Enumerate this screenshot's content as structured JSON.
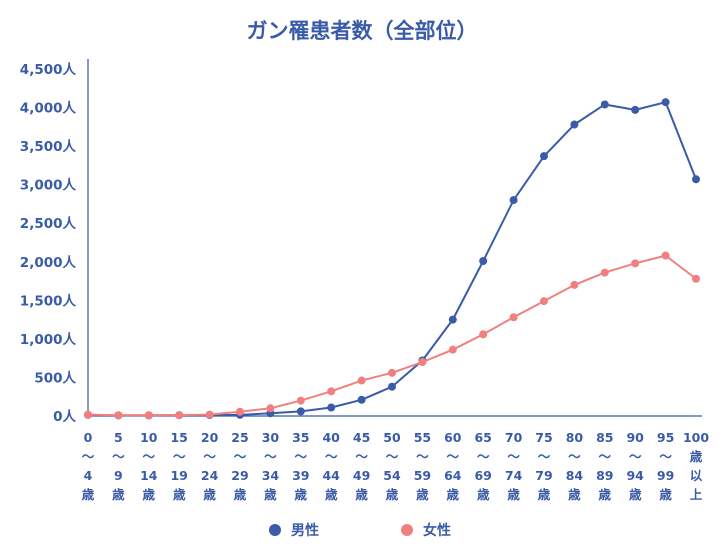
{
  "chart_data": {
    "type": "line",
    "title": "ガン罹患者数（全部位）",
    "xlabel": "",
    "ylabel": "",
    "ylim": [
      0,
      4500
    ],
    "y_ticks": [
      0,
      500,
      1000,
      1500,
      2000,
      2500,
      3000,
      3500,
      4000,
      4500
    ],
    "y_tick_labels": [
      "0人",
      "500人",
      "1,000人",
      "1,500人",
      "2,000人",
      "2,500人",
      "3,000人",
      "3,500人",
      "4,000人",
      "4,500人"
    ],
    "categories": [
      [
        "0",
        "～",
        "4",
        "歳"
      ],
      [
        "5",
        "～",
        "9",
        "歳"
      ],
      [
        "10",
        "～",
        "14",
        "歳"
      ],
      [
        "15",
        "～",
        "19",
        "歳"
      ],
      [
        "20",
        "～",
        "24",
        "歳"
      ],
      [
        "25",
        "～",
        "29",
        "歳"
      ],
      [
        "30",
        "～",
        "34",
        "歳"
      ],
      [
        "35",
        "～",
        "39",
        "歳"
      ],
      [
        "40",
        "～",
        "44",
        "歳"
      ],
      [
        "45",
        "～",
        "49",
        "歳"
      ],
      [
        "50",
        "～",
        "54",
        "歳"
      ],
      [
        "55",
        "～",
        "59",
        "歳"
      ],
      [
        "60",
        "～",
        "64",
        "歳"
      ],
      [
        "65",
        "～",
        "69",
        "歳"
      ],
      [
        "70",
        "～",
        "74",
        "歳"
      ],
      [
        "75",
        "～",
        "79",
        "歳"
      ],
      [
        "80",
        "～",
        "84",
        "歳"
      ],
      [
        "85",
        "～",
        "89",
        "歳"
      ],
      [
        "90",
        "～",
        "94",
        "歳"
      ],
      [
        "95",
        "～",
        "99",
        "歳"
      ],
      [
        "100",
        "歳",
        "以",
        "上"
      ]
    ],
    "series": [
      {
        "name": "男性",
        "color": "#3a5ba8",
        "values": [
          15,
          8,
          8,
          10,
          12,
          15,
          35,
          60,
          110,
          210,
          380,
          720,
          1250,
          2010,
          2800,
          3370,
          3780,
          4040,
          3970,
          4070,
          3070
        ]
      },
      {
        "name": "女性",
        "color": "#f08080",
        "values": [
          18,
          10,
          10,
          12,
          18,
          55,
          100,
          200,
          320,
          460,
          560,
          700,
          860,
          1060,
          1280,
          1490,
          1700,
          1860,
          1980,
          2080,
          1780
        ]
      }
    ],
    "legend_position": "bottom-center"
  }
}
